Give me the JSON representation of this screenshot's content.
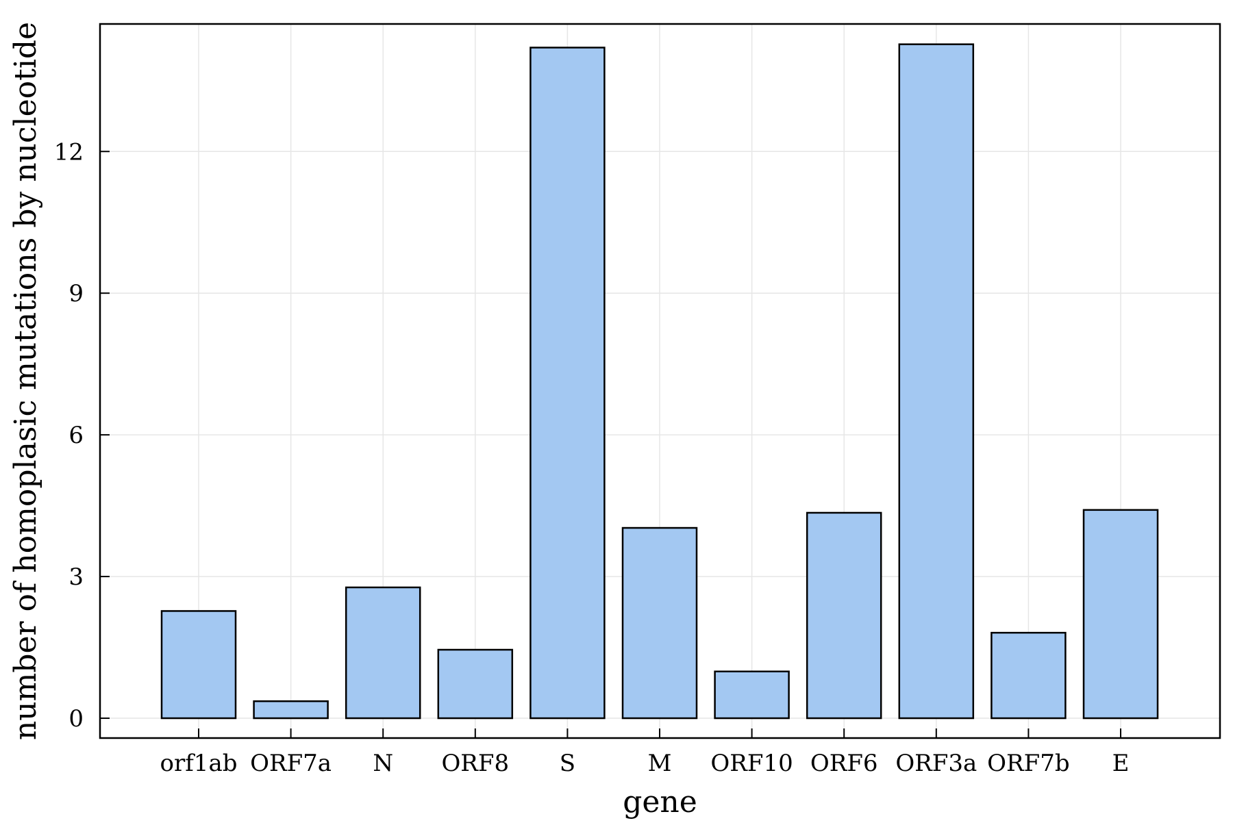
{
  "chart_data": {
    "type": "bar",
    "title": "",
    "xlabel": "gene",
    "ylabel": "number of homoplasic mutations by nucleotide",
    "categories": [
      "orf1ab",
      "ORF7a",
      "N",
      "ORF8",
      "S",
      "M",
      "ORF10",
      "ORF6",
      "ORF3a",
      "ORF7b",
      "E"
    ],
    "values": [
      2.27,
      0.36,
      2.77,
      1.45,
      14.2,
      4.03,
      0.99,
      4.35,
      14.27,
      1.81,
      4.41
    ],
    "ylim": [
      -0.42,
      14.7
    ],
    "yticks": [
      0,
      3,
      6,
      9,
      12
    ],
    "ytick_labels": [
      "0",
      "3",
      "6",
      "9",
      "12"
    ],
    "grid": true,
    "legend": "none",
    "colors": {
      "bar_fill": "#a3c8f2",
      "bar_stroke": "#000000",
      "grid": "#e6e6e6",
      "axis": "#000000"
    }
  }
}
